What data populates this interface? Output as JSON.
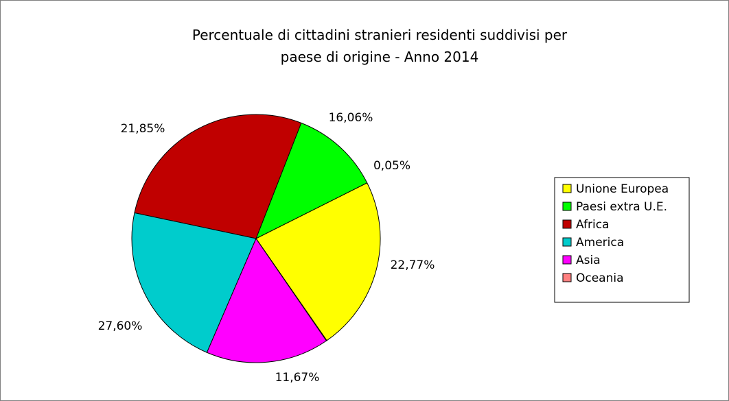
{
  "chart_data": {
    "type": "pie",
    "title": "Percentuale di cittadini stranieri residenti suddivisi per paese di origine - Anno 2014",
    "title_lines": [
      "Percentuale di cittadini stranieri residenti suddivisi per",
      "paese di origine - Anno 2014"
    ],
    "legend_position": "right",
    "slices": [
      {
        "name": "Unione Europea",
        "value": 22.77,
        "label": "22,77%",
        "color": "#ffff00"
      },
      {
        "name": "Paesi extra U.E.",
        "value": 11.67,
        "label": "11,67%",
        "color": "#00ff00"
      },
      {
        "name": "Africa",
        "value": 27.6,
        "label": "27,60%",
        "color": "#c00000"
      },
      {
        "name": "America",
        "value": 21.85,
        "label": "21,85%",
        "color": "#00cccc"
      },
      {
        "name": "Asia",
        "value": 16.06,
        "label": "16,06%",
        "color": "#ff00ff"
      },
      {
        "name": "Oceania",
        "value": 0.05,
        "label": "0,05%",
        "color": "#ff8080"
      }
    ]
  }
}
